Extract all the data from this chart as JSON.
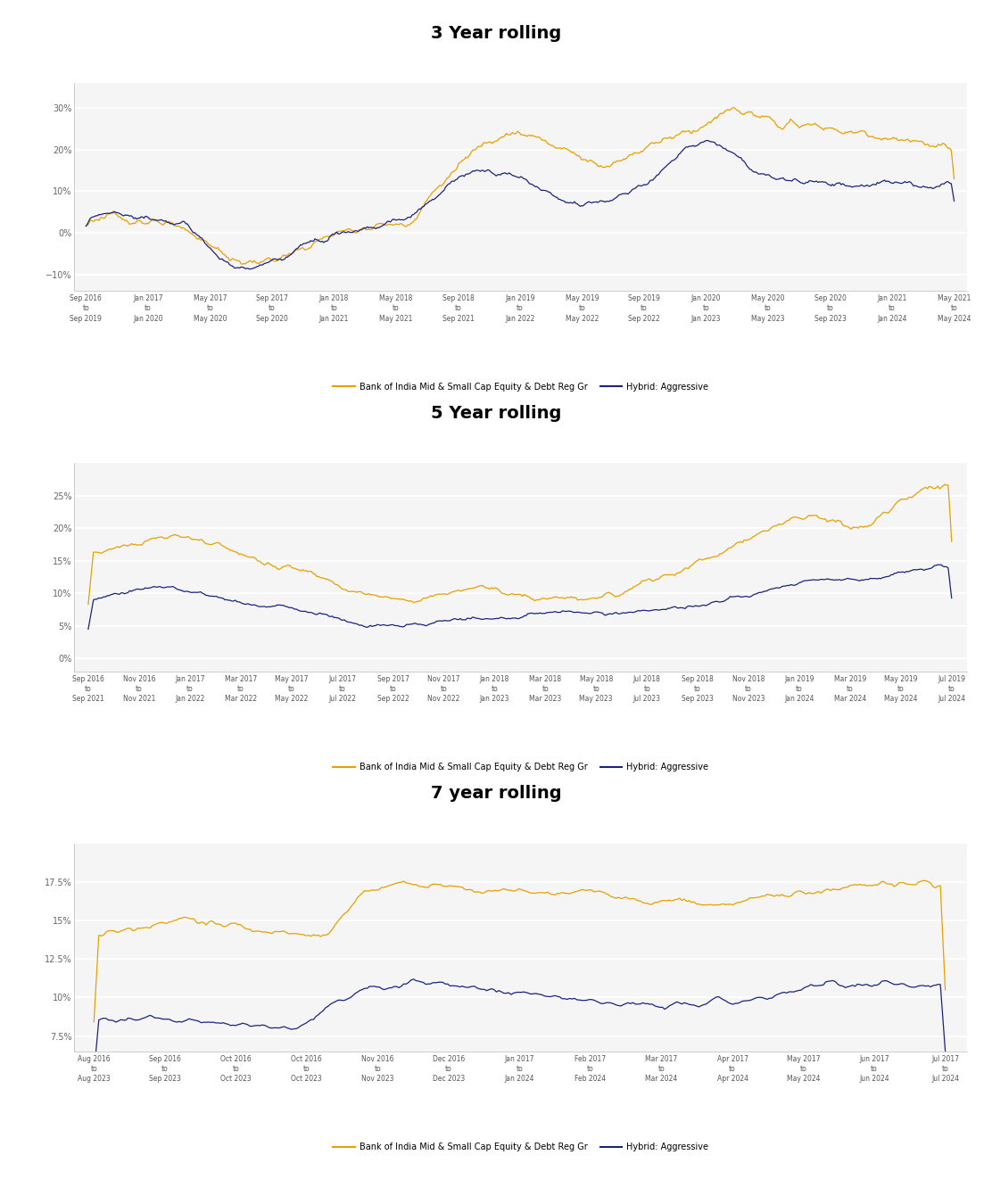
{
  "title1": "3 Year rolling",
  "title2": "5 Year rolling",
  "title3": "7 year rolling",
  "legend_gold": "Bank of India Mid & Small Cap Equity & Debt Reg Gr",
  "legend_blue": "Hybrid: Aggressive",
  "gold_color": "#E8A000",
  "blue_color": "#1A237E",
  "fig_bg": "#FFFFFF",
  "chart_bg": "#F5F5F5",
  "chart1": {
    "yticks": [
      -10,
      0,
      10,
      20,
      30
    ],
    "ylim": [
      -14,
      36
    ],
    "xtick_labels": [
      [
        "Sep 2016",
        "to",
        "Sep 2019"
      ],
      [
        "Jan 2017",
        "to",
        "Jan 2020"
      ],
      [
        "May 2017",
        "to",
        "May 2020"
      ],
      [
        "Sep 2017",
        "to",
        "Sep 2020"
      ],
      [
        "Jan 2018",
        "to",
        "Jan 2021"
      ],
      [
        "May 2018",
        "to",
        "May 2021"
      ],
      [
        "Sep 2018",
        "to",
        "Sep 2021"
      ],
      [
        "Jan 2019",
        "to",
        "Jan 2022"
      ],
      [
        "May 2019",
        "to",
        "May 2022"
      ],
      [
        "Sep 2019",
        "to",
        "Sep 2022"
      ],
      [
        "Jan 2020",
        "to",
        "Jan 2023"
      ],
      [
        "May 2020",
        "to",
        "May 2023"
      ],
      [
        "Sep 2020",
        "to",
        "Sep 2023"
      ],
      [
        "Jan 2021",
        "to",
        "Jan 2024"
      ],
      [
        "May 2021",
        "to",
        "May 2024"
      ]
    ]
  },
  "chart2": {
    "yticks": [
      0,
      5,
      10,
      15,
      20,
      25
    ],
    "ylim": [
      -2,
      30
    ],
    "xtick_labels": [
      [
        "Sep 2016",
        "to",
        "Sep 2021"
      ],
      [
        "Nov 2016",
        "to",
        "Nov 2021"
      ],
      [
        "Jan 2017",
        "to",
        "Jan 2022"
      ],
      [
        "Mar 2017",
        "to",
        "Mar 2022"
      ],
      [
        "May 2017",
        "to",
        "May 2022"
      ],
      [
        "Jul 2017",
        "to",
        "Jul 2022"
      ],
      [
        "Sep 2017",
        "to",
        "Sep 2022"
      ],
      [
        "Nov 2017",
        "to",
        "Nov 2022"
      ],
      [
        "Jan 2018",
        "to",
        "Jan 2023"
      ],
      [
        "Mar 2018",
        "to",
        "Mar 2023"
      ],
      [
        "May 2018",
        "to",
        "May 2023"
      ],
      [
        "Jul 2018",
        "to",
        "Jul 2023"
      ],
      [
        "Sep 2018",
        "to",
        "Sep 2023"
      ],
      [
        "Nov 2018",
        "to",
        "Nov 2023"
      ],
      [
        "Jan 2019",
        "to",
        "Jan 2024"
      ],
      [
        "Mar 2019",
        "to",
        "Mar 2024"
      ],
      [
        "May 2019",
        "to",
        "May 2024"
      ],
      [
        "Jul 2019",
        "to",
        "Jul 2024"
      ]
    ]
  },
  "chart3": {
    "yticks": [
      7.5,
      10.0,
      12.5,
      15.0,
      17.5
    ],
    "ylim": [
      6.5,
      20.0
    ],
    "xtick_labels": [
      [
        "Aug 2016",
        "to",
        "Aug 2023"
      ],
      [
        "Sep 2016",
        "to",
        "Sep 2023"
      ],
      [
        "Oct 2016",
        "to",
        "Oct 2023"
      ],
      [
        "Oct 2016",
        "to",
        "Oct 2023"
      ],
      [
        "Nov 2016",
        "to",
        "Nov 2023"
      ],
      [
        "Dec 2016",
        "to",
        "Dec 2023"
      ],
      [
        "Jan 2017",
        "to",
        "Jan 2024"
      ],
      [
        "Feb 2017",
        "to",
        "Feb 2024"
      ],
      [
        "Mar 2017",
        "to",
        "Mar 2024"
      ],
      [
        "Apr 2017",
        "to",
        "Apr 2024"
      ],
      [
        "May 2017",
        "to",
        "May 2024"
      ],
      [
        "Jun 2017",
        "to",
        "Jun 2024"
      ],
      [
        "Jul 2017",
        "to",
        "Jul 2024"
      ]
    ]
  }
}
